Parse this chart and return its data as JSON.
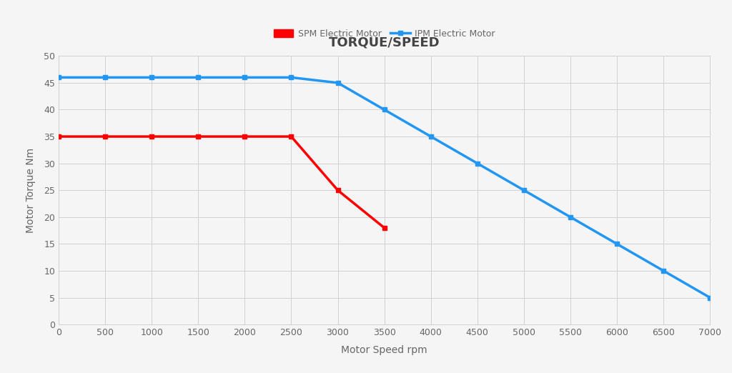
{
  "title": "TORQUE/SPEED",
  "xlabel": "Motor Speed rpm",
  "ylabel": "Motor Torque Nm",
  "background_color": "#f5f5f5",
  "plot_bg_color": "#f5f5f5",
  "grid_color": "#d0d0d0",
  "spm": {
    "label": "SPM Electric Motor",
    "color": "#ff0000",
    "x": [
      0,
      500,
      1000,
      1500,
      2000,
      2500,
      3000,
      3500
    ],
    "y": [
      35,
      35,
      35,
      35,
      35,
      35,
      25,
      18
    ]
  },
  "ipm": {
    "label": "IPM Electric Motor",
    "color": "#2196f3",
    "x": [
      0,
      500,
      1000,
      1500,
      2000,
      2500,
      3000,
      3500,
      4000,
      4500,
      5000,
      5500,
      6000,
      6500,
      7000
    ],
    "y": [
      46,
      46,
      46,
      46,
      46,
      46,
      45,
      40,
      35,
      30,
      25,
      20,
      15,
      10,
      5
    ]
  },
  "xlim": [
    0,
    7000
  ],
  "ylim": [
    0,
    50
  ],
  "xticks": [
    0,
    500,
    1000,
    1500,
    2000,
    2500,
    3000,
    3500,
    4000,
    4500,
    5000,
    5500,
    6000,
    6500,
    7000
  ],
  "yticks": [
    0,
    5,
    10,
    15,
    20,
    25,
    30,
    35,
    40,
    45,
    50
  ],
  "title_fontsize": 13,
  "axis_label_fontsize": 10,
  "tick_fontsize": 9,
  "legend_fontsize": 9,
  "line_width": 2.5,
  "marker": "s",
  "marker_size": 4,
  "title_color": "#444444",
  "label_color": "#666666",
  "tick_color": "#666666"
}
